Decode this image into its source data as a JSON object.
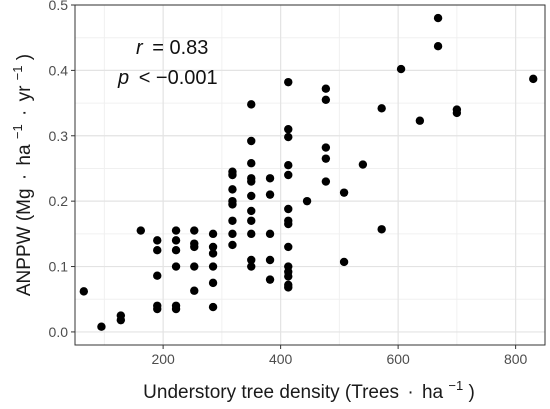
{
  "chart_data": {
    "type": "scatter",
    "title": "",
    "xlabel": {
      "prefix": "Understory tree density (Trees",
      "sep": "·",
      "unit": "ha",
      "exp": "−1",
      "suffix": ")"
    },
    "ylabel": {
      "prefix": "ANPPW (Mg",
      "sep1": "·",
      "unit1": "ha",
      "exp1": "−1",
      "sep2": "·",
      "unit2": "yr",
      "exp2": "−1",
      "suffix": ")"
    },
    "xlim": [
      50,
      850
    ],
    "ylim": [
      -0.02,
      0.5
    ],
    "xticks": [
      200,
      400,
      600,
      800
    ],
    "yticks": [
      0.0,
      0.1,
      0.2,
      0.3,
      0.4,
      0.5
    ],
    "xticklabels": [
      "200",
      "400",
      "600",
      "800"
    ],
    "yticklabels": [
      "0.0",
      "0.1",
      "0.2",
      "0.3",
      "0.4",
      "0.5"
    ],
    "minor_x": [
      100,
      300,
      500,
      700
    ],
    "minor_y": [
      0.05,
      0.15,
      0.25,
      0.35,
      0.45
    ],
    "grid": true,
    "point_color": "#000000",
    "annotations": {
      "r_label": "r",
      "r_text": "=  0.83",
      "p_label": "p",
      "p_text": "<  −0.001"
    },
    "series": [
      {
        "points": [
          [
            65,
            0.062
          ],
          [
            95,
            0.008
          ],
          [
            128,
            0.025
          ],
          [
            128,
            0.018
          ],
          [
            162,
            0.155
          ],
          [
            190,
            0.14
          ],
          [
            190,
            0.125
          ],
          [
            190,
            0.086
          ],
          [
            190,
            0.04
          ],
          [
            190,
            0.035
          ],
          [
            222,
            0.155
          ],
          [
            222,
            0.14
          ],
          [
            222,
            0.125
          ],
          [
            222,
            0.1
          ],
          [
            222,
            0.04
          ],
          [
            222,
            0.035
          ],
          [
            253,
            0.155
          ],
          [
            253,
            0.135
          ],
          [
            253,
            0.13
          ],
          [
            253,
            0.1
          ],
          [
            253,
            0.063
          ],
          [
            285,
            0.15
          ],
          [
            285,
            0.13
          ],
          [
            285,
            0.12
          ],
          [
            285,
            0.1
          ],
          [
            285,
            0.075
          ],
          [
            285,
            0.038
          ],
          [
            318,
            0.245
          ],
          [
            318,
            0.24
          ],
          [
            318,
            0.218
          ],
          [
            318,
            0.2
          ],
          [
            318,
            0.195
          ],
          [
            318,
            0.17
          ],
          [
            318,
            0.15
          ],
          [
            318,
            0.133
          ],
          [
            350,
            0.348
          ],
          [
            350,
            0.292
          ],
          [
            350,
            0.258
          ],
          [
            350,
            0.235
          ],
          [
            350,
            0.23
          ],
          [
            350,
            0.208
          ],
          [
            350,
            0.185
          ],
          [
            350,
            0.17
          ],
          [
            350,
            0.15
          ],
          [
            350,
            0.11
          ],
          [
            350,
            0.1
          ],
          [
            382,
            0.235
          ],
          [
            382,
            0.21
          ],
          [
            382,
            0.15
          ],
          [
            382,
            0.11
          ],
          [
            382,
            0.08
          ],
          [
            413,
            0.382
          ],
          [
            413,
            0.31
          ],
          [
            413,
            0.298
          ],
          [
            413,
            0.255
          ],
          [
            413,
            0.24
          ],
          [
            413,
            0.188
          ],
          [
            413,
            0.17
          ],
          [
            413,
            0.165
          ],
          [
            413,
            0.13
          ],
          [
            413,
            0.1
          ],
          [
            413,
            0.092
          ],
          [
            413,
            0.085
          ],
          [
            413,
            0.072
          ],
          [
            413,
            0.068
          ],
          [
            445,
            0.2
          ],
          [
            477,
            0.372
          ],
          [
            477,
            0.355
          ],
          [
            477,
            0.282
          ],
          [
            477,
            0.265
          ],
          [
            477,
            0.23
          ],
          [
            508,
            0.213
          ],
          [
            508,
            0.107
          ],
          [
            540,
            0.256
          ],
          [
            572,
            0.342
          ],
          [
            572,
            0.157
          ],
          [
            605,
            0.402
          ],
          [
            637,
            0.323
          ],
          [
            668,
            0.48
          ],
          [
            668,
            0.437
          ],
          [
            700,
            0.34
          ],
          [
            700,
            0.335
          ],
          [
            830,
            0.387
          ]
        ]
      }
    ]
  }
}
